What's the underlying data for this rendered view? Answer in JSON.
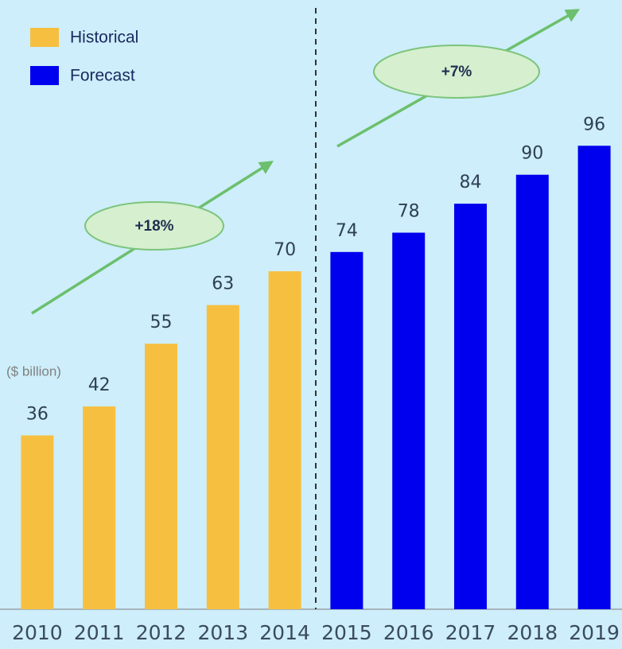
{
  "chart_data": {
    "type": "bar",
    "categories": [
      "2010",
      "2011",
      "2012",
      "2013",
      "2014",
      "2015",
      "2016",
      "2017",
      "2018",
      "2019"
    ],
    "series": [
      {
        "name": "Historical",
        "color": "#f7bf40",
        "values": [
          36,
          42,
          55,
          63,
          70,
          null,
          null,
          null,
          null,
          null
        ]
      },
      {
        "name": "Forecast",
        "color": "#0000ee",
        "values": [
          null,
          null,
          null,
          null,
          null,
          74,
          78,
          84,
          90,
          96
        ]
      }
    ],
    "unit_label": "($ billion)",
    "annotations": [
      "+18%",
      "+7%"
    ],
    "legend": "top-left"
  }
}
